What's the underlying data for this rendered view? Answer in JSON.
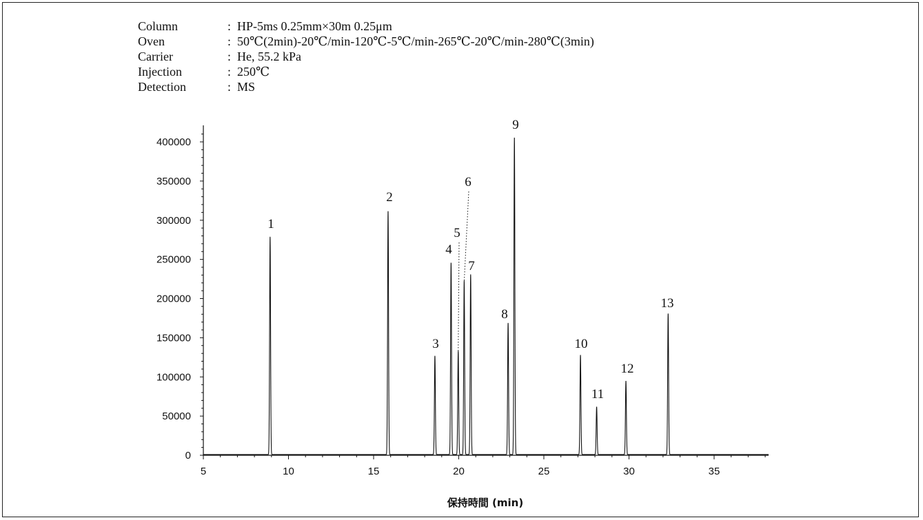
{
  "conditions": [
    {
      "label": "Column",
      "sep": ":",
      "value": "HP-5ms 0.25mm×30m 0.25μm"
    },
    {
      "label": "Oven",
      "sep": ":",
      "value": "50℃(2min)-20℃/min-120℃-5℃/min-265℃-20℃/min-280℃(3min)"
    },
    {
      "label": "Carrier",
      "sep": ":",
      "value": "He, 55.2 kPa"
    },
    {
      "label": "Injection",
      "sep": ":",
      "value": "250℃"
    },
    {
      "label": "Detection",
      "sep": ":",
      "value": "MS"
    }
  ],
  "chart_data": {
    "type": "line",
    "title": "",
    "xlabel": "保持時間 (min)",
    "ylabel": "",
    "xlim": [
      5,
      38.2
    ],
    "ylim": [
      0,
      420000
    ],
    "xticks": [
      5,
      10,
      15,
      20,
      25,
      30,
      35
    ],
    "yticks": [
      0,
      50000,
      100000,
      150000,
      200000,
      250000,
      300000,
      350000,
      400000
    ],
    "grid": false,
    "peaks": [
      {
        "label": "1",
        "x": 8.92,
        "y": 278000
      },
      {
        "label": "2",
        "x": 15.85,
        "y": 311000
      },
      {
        "label": "3",
        "x": 18.6,
        "y": 126000
      },
      {
        "label": "4",
        "x": 19.55,
        "y": 245000
      },
      {
        "label": "5",
        "x": 19.97,
        "y": 132000
      },
      {
        "label": "6",
        "x": 20.32,
        "y": 222000
      },
      {
        "label": "7",
        "x": 20.7,
        "y": 230000
      },
      {
        "label": "8",
        "x": 22.9,
        "y": 168000
      },
      {
        "label": "9",
        "x": 23.27,
        "y": 405000
      },
      {
        "label": "10",
        "x": 27.15,
        "y": 127000
      },
      {
        "label": "11",
        "x": 28.1,
        "y": 61000
      },
      {
        "label": "12",
        "x": 29.82,
        "y": 94000
      },
      {
        "label": "13",
        "x": 32.3,
        "y": 180000
      }
    ]
  }
}
